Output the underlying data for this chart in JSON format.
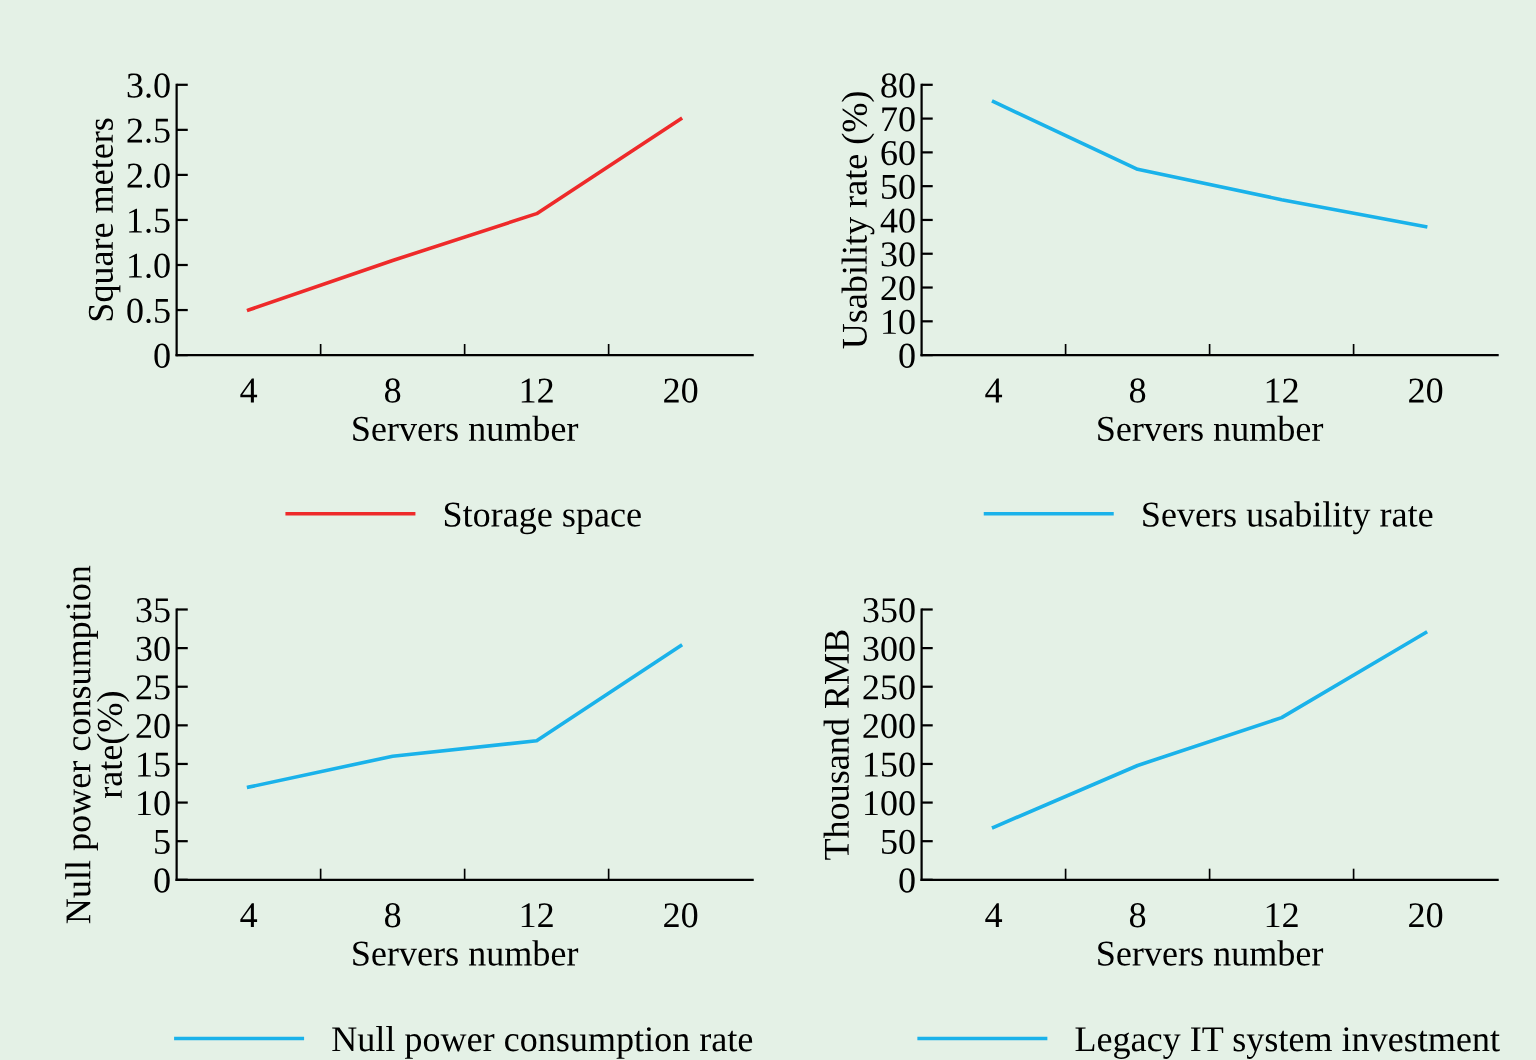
{
  "chart_data": [
    {
      "type": "line",
      "categories": [
        "4",
        "8",
        "12",
        "20"
      ],
      "xlabel": "Servers number",
      "ylabel": "Square meters",
      "ylim": [
        0,
        3.0
      ],
      "yticks": [
        0,
        {
          "value": 0.5,
          "label": "0.5"
        },
        {
          "value": 1.0,
          "label": "1.0"
        },
        {
          "value": 1.5,
          "label": "1.5"
        },
        {
          "value": 2.0,
          "label": "2.0"
        },
        {
          "value": 2.5,
          "label": "2.5"
        },
        {
          "value": 3.0,
          "label": "3.0"
        }
      ],
      "legend": "bottom",
      "grid": false,
      "series": [
        {
          "name": "Storage space",
          "color": "#ee2a2a",
          "values": [
            0.5,
            1.05,
            1.57,
            2.62
          ]
        }
      ]
    },
    {
      "type": "line",
      "categories": [
        "4",
        "8",
        "12",
        "20"
      ],
      "xlabel": "Servers number",
      "ylabel": "Usability rate (%)",
      "ylim": [
        0,
        80
      ],
      "yticks": [
        0,
        10,
        20,
        30,
        40,
        50,
        60,
        70,
        80
      ],
      "legend": "bottom",
      "grid": false,
      "series": [
        {
          "name": "Severs usability rate",
          "color": "#1ab2ea",
          "values": [
            75,
            55,
            46,
            38
          ]
        }
      ]
    },
    {
      "type": "line",
      "categories": [
        "4",
        "8",
        "12",
        "20"
      ],
      "xlabel": "Servers number",
      "ylabel": "Null power consumption\nrate(%)",
      "ylim": [
        0,
        35
      ],
      "yticks": [
        0,
        5,
        10,
        15,
        20,
        25,
        30,
        35
      ],
      "legend": "bottom",
      "grid": false,
      "series": [
        {
          "name": "Null power consumption rate",
          "color": "#1ab2ea",
          "values": [
            12,
            16,
            18,
            30.3
          ]
        }
      ]
    },
    {
      "type": "line",
      "categories": [
        "4",
        "8",
        "12",
        "20"
      ],
      "xlabel": "Servers number",
      "ylabel": "Thousand RMB",
      "ylim": [
        0,
        350
      ],
      "yticks": [
        0,
        50,
        100,
        150,
        200,
        250,
        300,
        350
      ],
      "legend": "bottom",
      "grid": false,
      "series": [
        {
          "name": "Legacy IT system investment",
          "color": "#1ab2ea",
          "values": [
            68,
            148,
            210,
            320
          ]
        }
      ]
    }
  ]
}
